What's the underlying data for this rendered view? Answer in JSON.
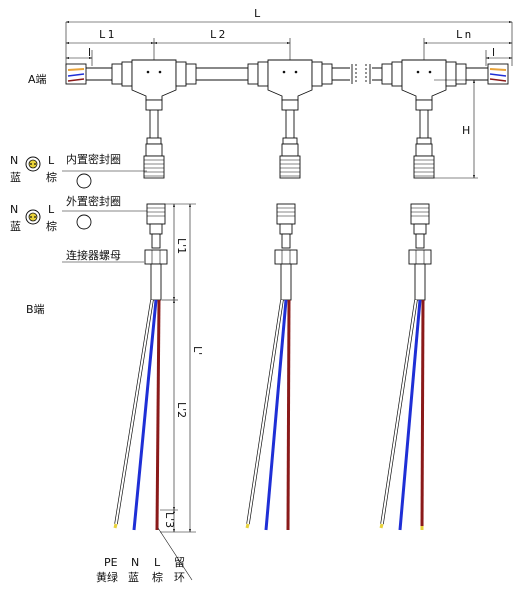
{
  "dimensions": {
    "total": "L",
    "l1": "L1",
    "l2": "L2",
    "ln": "Ln",
    "l_small_left": "l",
    "l_small_right": "l",
    "height": "H",
    "lp1": "L'1",
    "lp2": "L'2",
    "lp3": "L'3",
    "lp": "L'"
  },
  "ends": {
    "a_end": "A端",
    "b_end": "B端"
  },
  "seal_inner": {
    "n": "N",
    "l": "L",
    "n_color": "蓝",
    "l_color": "棕",
    "label": "内置密封圈"
  },
  "seal_outer": {
    "n": "N",
    "l": "L",
    "n_color": "蓝",
    "l_color": "棕",
    "label": "外置密封圈"
  },
  "connector_nut": "连接器螺母",
  "wire_labels": {
    "pe": "PE",
    "pe_color": "黄绿",
    "n": "N",
    "n_color": "蓝",
    "l": "L",
    "l_color": "棕",
    "strip_a": "留",
    "strip_b": "环"
  },
  "colors": {
    "blue_wire": "#1f2fd6",
    "brown_wire": "#8a1a1a",
    "pe_wire": "#ffffff",
    "orange_tip": "#e8a33a",
    "yellow_tip": "#e8d23a"
  }
}
